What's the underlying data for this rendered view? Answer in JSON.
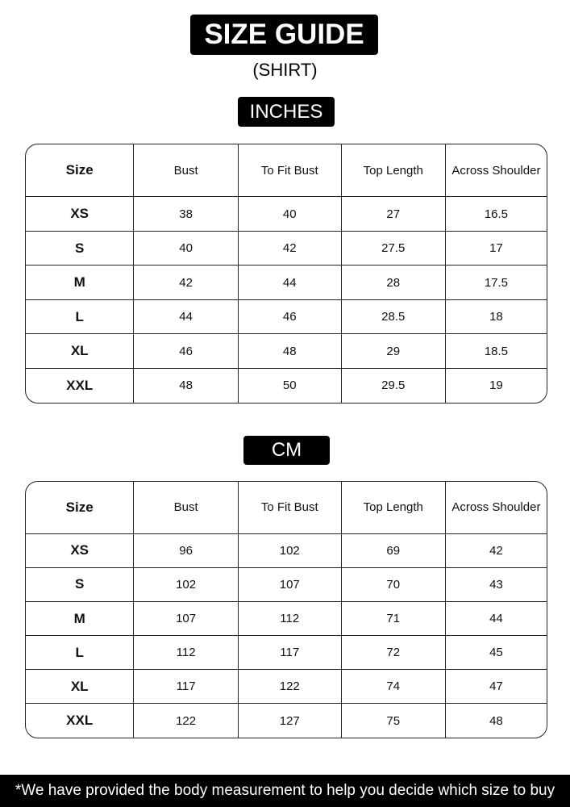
{
  "header": {
    "title": "SIZE GUIDE",
    "subtitle": "(SHIRT)"
  },
  "tables": [
    {
      "unit": "INCHES",
      "columns": [
        "Size",
        "Bust",
        "To Fit Bust",
        "Top Length",
        "Across Shoulder"
      ],
      "rows": [
        [
          "XS",
          "38",
          "40",
          "27",
          "16.5"
        ],
        [
          "S",
          "40",
          "42",
          "27.5",
          "17"
        ],
        [
          "M",
          "42",
          "44",
          "28",
          "17.5"
        ],
        [
          "L",
          "44",
          "46",
          "28.5",
          "18"
        ],
        [
          "XL",
          "46",
          "48",
          "29",
          "18.5"
        ],
        [
          "XXL",
          "48",
          "50",
          "29.5",
          "19"
        ]
      ]
    },
    {
      "unit": "CM",
      "columns": [
        "Size",
        "Bust",
        "To Fit Bust",
        "Top Length",
        "Across Shoulder"
      ],
      "rows": [
        [
          "XS",
          "96",
          "102",
          "69",
          "42"
        ],
        [
          "S",
          "102",
          "107",
          "70",
          "43"
        ],
        [
          "M",
          "107",
          "112",
          "71",
          "44"
        ],
        [
          "L",
          "112",
          "117",
          "72",
          "45"
        ],
        [
          "XL",
          "117",
          "122",
          "74",
          "47"
        ],
        [
          "XXL",
          "122",
          "127",
          "75",
          "48"
        ]
      ]
    }
  ],
  "footer": "*We have provided the body measurement to help you decide which size to buy"
}
